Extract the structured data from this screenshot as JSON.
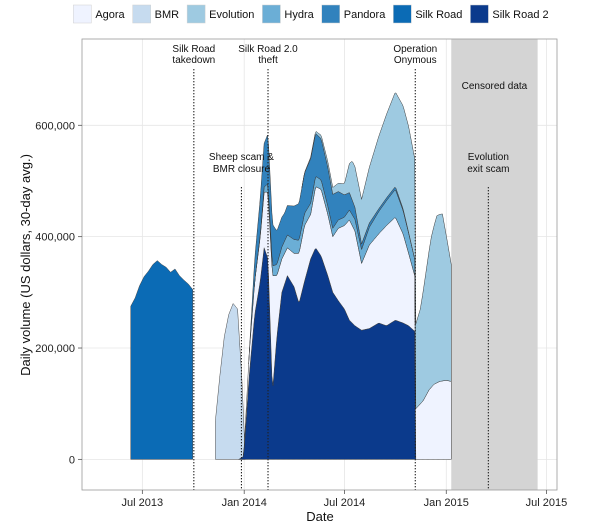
{
  "chart_data": {
    "type": "area",
    "xlabel": "Date",
    "ylabel": "Daily volume (US dollars, 30-day avg.)",
    "xlim": [
      "2013-03-14",
      "2015-07-20"
    ],
    "ylim": [
      -55000,
      755000
    ],
    "grid": true,
    "legend_position": "top",
    "x_ticks": [
      {
        "date": "2013-07-01",
        "label": "Jul 2013"
      },
      {
        "date": "2014-01-01",
        "label": "Jan 2014"
      },
      {
        "date": "2014-07-01",
        "label": "Jul 2014"
      },
      {
        "date": "2015-01-01",
        "label": "Jan 2015"
      },
      {
        "date": "2015-07-01",
        "label": "Jul 2015"
      }
    ],
    "y_ticks": [
      {
        "value": 0,
        "label": "0"
      },
      {
        "value": 200000,
        "label": "200,000"
      },
      {
        "value": 400000,
        "label": "400,000"
      },
      {
        "value": 600000,
        "label": "600,000"
      }
    ],
    "stack_order": [
      "Silk Road 2",
      "Agora",
      "Hydra",
      "Pandora",
      "Evolution"
    ],
    "series": [
      {
        "name": "Agora",
        "color": "#eff3ff"
      },
      {
        "name": "BMR",
        "color": "#c6dbef"
      },
      {
        "name": "Evolution",
        "color": "#9ecae1"
      },
      {
        "name": "Hydra",
        "color": "#6baed6"
      },
      {
        "name": "Pandora",
        "color": "#3182bd"
      },
      {
        "name": "Silk Road",
        "color": "#0b6bb5"
      },
      {
        "name": "Silk Road 2",
        "color": "#0b3a8c"
      }
    ],
    "silk_road": {
      "x": [
        "2013-06-10",
        "2013-06-18",
        "2013-06-26",
        "2013-07-04",
        "2013-07-12",
        "2013-07-20",
        "2013-07-28",
        "2013-08-05",
        "2013-08-13",
        "2013-08-21",
        "2013-08-29",
        "2013-09-06",
        "2013-09-14",
        "2013-09-22",
        "2013-09-30"
      ],
      "values": [
        275000,
        290000,
        312000,
        328000,
        338000,
        350000,
        357000,
        350000,
        345000,
        336000,
        342000,
        330000,
        322000,
        315000,
        305000
      ]
    },
    "bmr": {
      "x": [
        "2013-11-10",
        "2013-11-18",
        "2013-11-26",
        "2013-12-04",
        "2013-12-12",
        "2013-12-20",
        "2013-12-28",
        "2014-01-03"
      ],
      "values": [
        70000,
        150000,
        220000,
        260000,
        280000,
        270000,
        140000,
        0
      ]
    },
    "silk_road_2": {
      "x": [
        "2013-12-22",
        "2013-12-31",
        "2014-01-10",
        "2014-01-20",
        "2014-01-30",
        "2014-02-06",
        "2014-02-13",
        "2014-02-21",
        "2014-03-01",
        "2014-03-10",
        "2014-03-20",
        "2014-04-01",
        "2014-04-10",
        "2014-04-20",
        "2014-05-01",
        "2014-05-10",
        "2014-05-20",
        "2014-06-01",
        "2014-06-10",
        "2014-06-20",
        "2014-07-01",
        "2014-07-10",
        "2014-07-20",
        "2014-08-01",
        "2014-08-15",
        "2014-09-01",
        "2014-09-15",
        "2014-10-01",
        "2014-10-15",
        "2014-10-25",
        "2014-11-05"
      ],
      "values": [
        0,
        5000,
        150000,
        260000,
        320000,
        380000,
        360000,
        120000,
        220000,
        300000,
        330000,
        310000,
        280000,
        320000,
        360000,
        380000,
        365000,
        330000,
        300000,
        285000,
        270000,
        250000,
        240000,
        232000,
        235000,
        245000,
        240000,
        250000,
        245000,
        240000,
        230000
      ]
    },
    "agora": {
      "x": [
        "2013-12-22",
        "2013-12-31",
        "2014-01-10",
        "2014-01-20",
        "2014-01-30",
        "2014-02-06",
        "2014-02-13",
        "2014-02-21",
        "2014-03-01",
        "2014-03-10",
        "2014-03-20",
        "2014-04-01",
        "2014-04-10",
        "2014-04-20",
        "2014-05-01",
        "2014-05-10",
        "2014-05-20",
        "2014-06-01",
        "2014-06-10",
        "2014-06-20",
        "2014-07-01",
        "2014-07-10",
        "2014-07-20",
        "2014-08-01",
        "2014-08-15",
        "2014-09-01",
        "2014-09-15",
        "2014-10-01",
        "2014-10-15",
        "2014-10-25",
        "2014-11-05",
        "2014-11-06",
        "2014-11-20",
        "2014-12-01",
        "2014-12-10",
        "2014-12-20",
        "2015-01-01",
        "2015-01-10"
      ],
      "values": [
        0,
        0,
        40000,
        60000,
        80000,
        100000,
        120000,
        210000,
        110000,
        60000,
        50000,
        60000,
        90000,
        100000,
        80000,
        110000,
        120000,
        110000,
        100000,
        130000,
        150000,
        180000,
        170000,
        120000,
        150000,
        160000,
        180000,
        185000,
        160000,
        130000,
        100000,
        90000,
        105000,
        125000,
        135000,
        140000,
        142000,
        140000
      ]
    },
    "hydra": {
      "x": [
        "2014-01-20",
        "2014-02-01",
        "2014-02-13",
        "2014-03-01",
        "2014-04-01",
        "2014-05-01",
        "2014-06-01",
        "2014-07-01",
        "2014-08-01",
        "2014-09-01",
        "2014-10-01",
        "2014-11-05"
      ],
      "values": [
        0,
        5000,
        15000,
        20000,
        25000,
        20000,
        15000,
        15000,
        25000,
        40000,
        50000,
        30000
      ]
    },
    "pandora": {
      "x": [
        "2014-01-10",
        "2014-01-20",
        "2014-02-01",
        "2014-02-13",
        "2014-03-01",
        "2014-03-15",
        "2014-04-01",
        "2014-05-01",
        "2014-06-01",
        "2014-07-01",
        "2014-08-01",
        "2014-09-01",
        "2014-10-01",
        "2014-11-05"
      ],
      "values": [
        0,
        40000,
        70000,
        90000,
        60000,
        50000,
        60000,
        80000,
        70000,
        40000,
        10000,
        5000,
        5000,
        0
      ]
    },
    "evolution": {
      "x": [
        "2014-01-20",
        "2014-02-15",
        "2014-03-15",
        "2014-04-15",
        "2014-05-15",
        "2014-06-01",
        "2014-06-20",
        "2014-07-01",
        "2014-07-15",
        "2014-08-01",
        "2014-08-15",
        "2014-09-01",
        "2014-09-15",
        "2014-10-01",
        "2014-10-15",
        "2014-10-25",
        "2014-11-05",
        "2014-11-06",
        "2014-11-15",
        "2014-11-25",
        "2014-12-05",
        "2014-12-15",
        "2014-12-25",
        "2015-01-01",
        "2015-01-10"
      ],
      "values": [
        0,
        0,
        0,
        0,
        5000,
        10000,
        15000,
        20000,
        70000,
        80000,
        100000,
        130000,
        150000,
        170000,
        185000,
        190000,
        180000,
        150000,
        170000,
        220000,
        270000,
        300000,
        300000,
        260000,
        210000
      ]
    },
    "events": [
      {
        "date": "2013-10-02",
        "label": "Silk Road\ntakedown",
        "label_side": "top"
      },
      {
        "date": "2013-12-27",
        "label": "Sheep scam &\nBMR closure",
        "label_side": "mid"
      },
      {
        "date": "2014-02-13",
        "label": "Silk Road 2.0\ntheft",
        "label_side": "top"
      },
      {
        "date": "2014-11-06",
        "label": "Operation\nOnymous",
        "label_side": "top"
      },
      {
        "date": "2015-03-18",
        "label": "Evolution\nexit scam",
        "label_side": "mid"
      }
    ],
    "censored": {
      "start": "2015-01-10",
      "end": "2015-06-15",
      "label": "Censored data"
    }
  }
}
